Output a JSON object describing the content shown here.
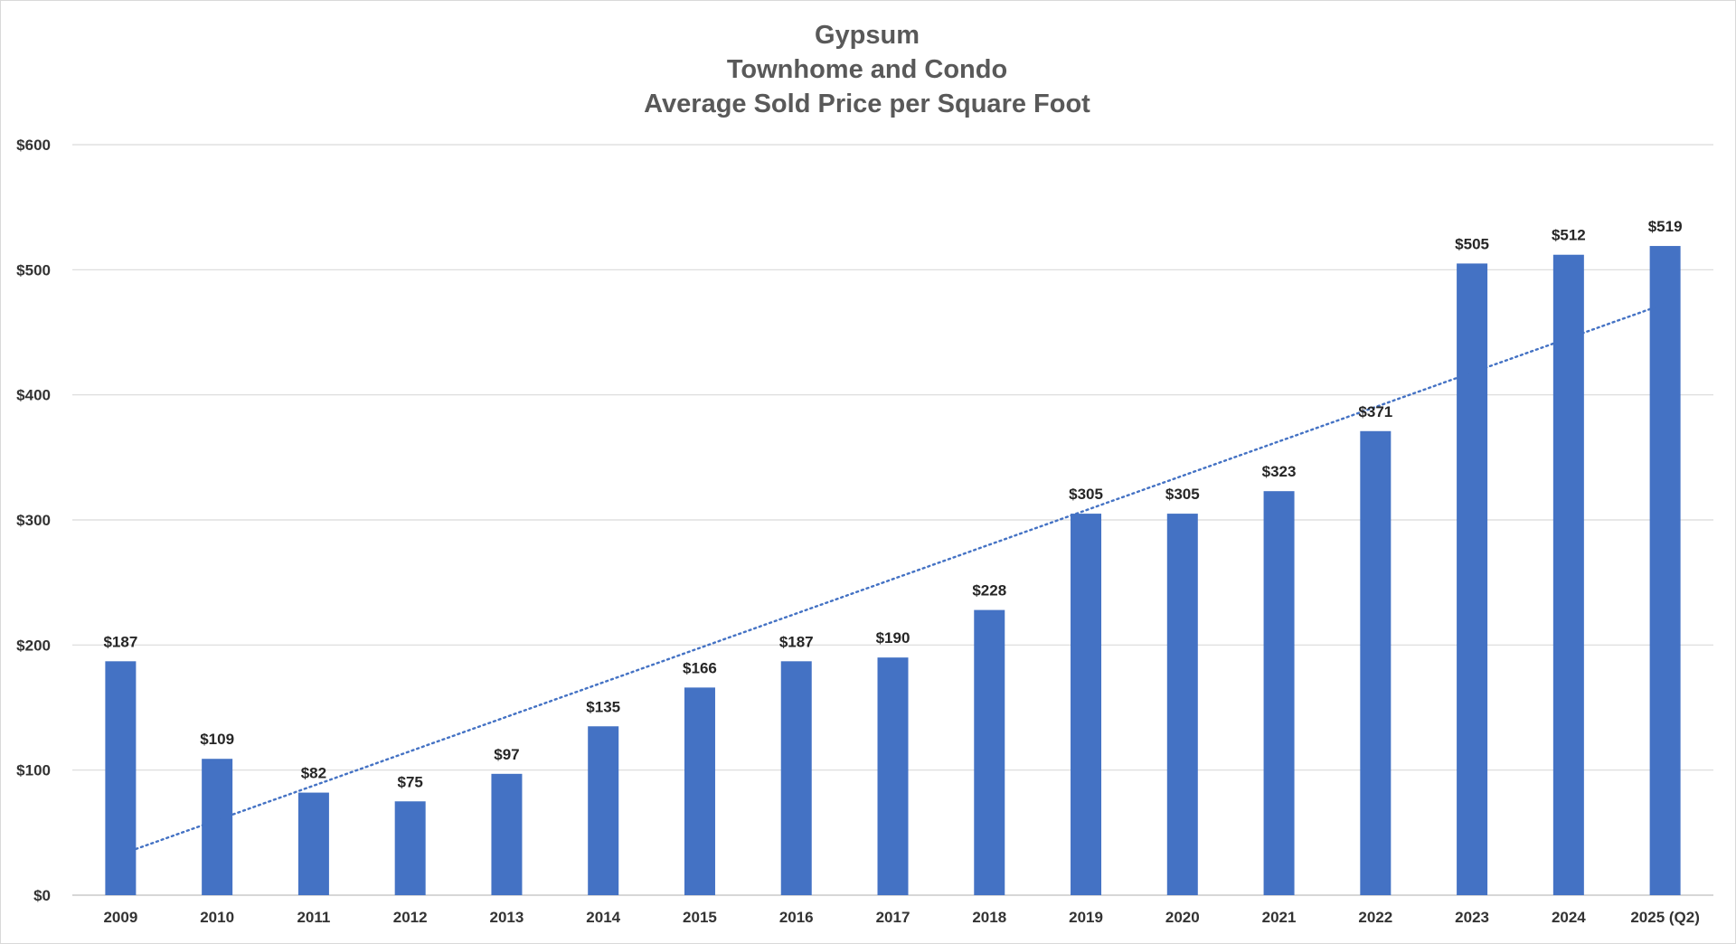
{
  "chart_data": {
    "type": "bar",
    "title_lines": [
      "Gypsum",
      "Townhome and Condo",
      "Average Sold Price per Square Foot"
    ],
    "categories": [
      "2009",
      "2010",
      "2011",
      "2012",
      "2013",
      "2014",
      "2015",
      "2016",
      "2017",
      "2018",
      "2019",
      "2020",
      "2021",
      "2022",
      "2023",
      "2024",
      "2025 (Q2)"
    ],
    "series": [
      {
        "values": [
          187,
          109,
          82,
          75,
          97,
          135,
          166,
          187,
          190,
          228,
          305,
          305,
          323,
          371,
          505,
          512,
          519
        ],
        "color": "#4472C4"
      }
    ],
    "data_labels": [
      "$187",
      "$109",
      "$82",
      "$75",
      "$97",
      "$135",
      "$166",
      "$187",
      "$190",
      "$228",
      "$305",
      "$305",
      "$323",
      "$371",
      "$505",
      "$512",
      "$519"
    ],
    "y_ticks": [
      0,
      100,
      200,
      300,
      400,
      500,
      600
    ],
    "y_tick_labels": [
      "$0",
      "$100",
      "$200",
      "$300",
      "$400",
      "$500",
      "$600"
    ],
    "ylim": [
      0,
      600
    ],
    "trendline": {
      "type": "linear",
      "style": "dotted",
      "color": "#4472C4"
    },
    "grid": true,
    "legend": "none"
  }
}
